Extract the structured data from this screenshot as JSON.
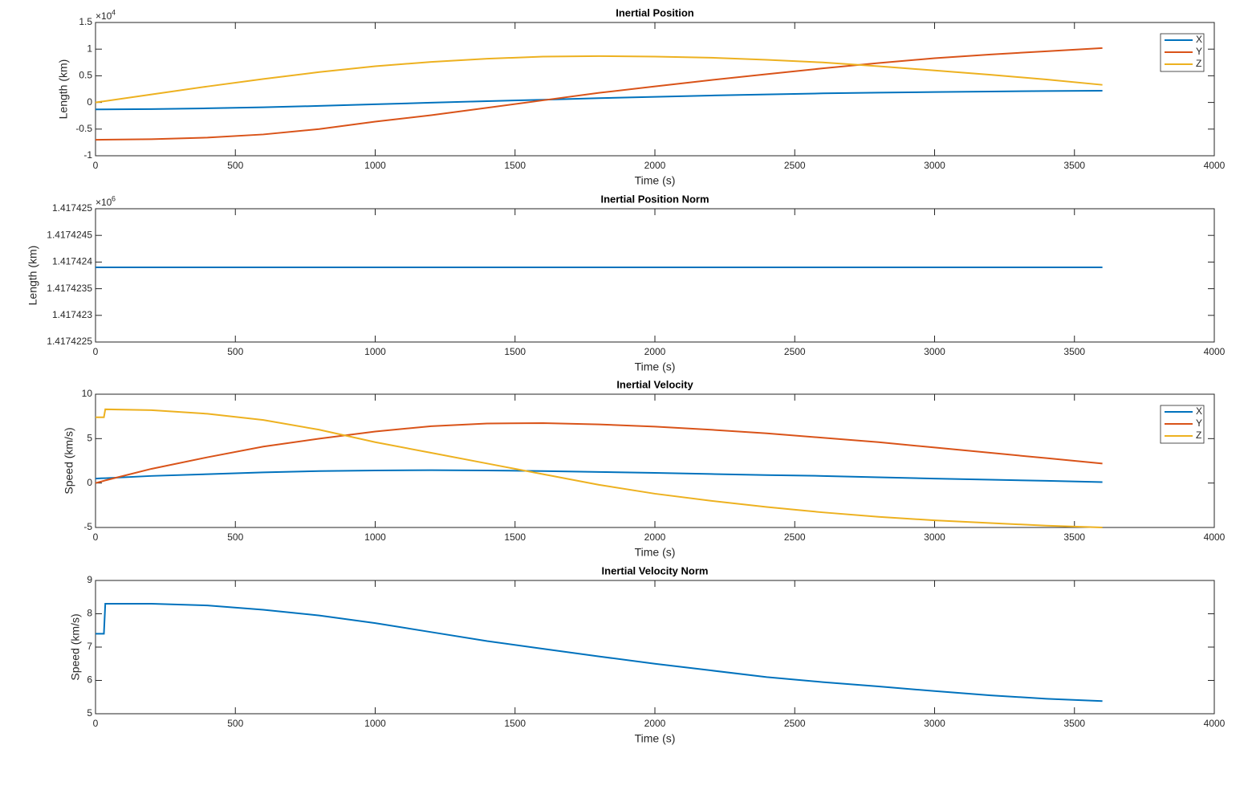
{
  "chart_data": [
    {
      "type": "line",
      "title": "Inertial Position",
      "xlabel": "Time (s)",
      "ylabel": "Length (km)",
      "y_scale_label": {
        "base": "×10",
        "exponent": "4"
      },
      "x": [
        0,
        200,
        400,
        600,
        800,
        1000,
        1200,
        1400,
        1600,
        1800,
        2000,
        2200,
        2400,
        2600,
        2800,
        3000,
        3200,
        3400,
        3600
      ],
      "series": [
        {
          "name": "X",
          "color": "#0072BD",
          "values": [
            -0.13,
            -0.125,
            -0.11,
            -0.09,
            -0.065,
            -0.035,
            -0.005,
            0.025,
            0.05,
            0.08,
            0.105,
            0.13,
            0.15,
            0.17,
            0.185,
            0.195,
            0.205,
            0.215,
            0.22
          ]
        },
        {
          "name": "Y",
          "color": "#D95319",
          "values": [
            -0.7,
            -0.69,
            -0.66,
            -0.6,
            -0.5,
            -0.36,
            -0.24,
            -0.1,
            0.04,
            0.18,
            0.3,
            0.42,
            0.53,
            0.64,
            0.74,
            0.83,
            0.9,
            0.96,
            1.02
          ]
        },
        {
          "name": "Z",
          "color": "#EDB120",
          "values": [
            0,
            0.15,
            0.3,
            0.44,
            0.57,
            0.68,
            0.76,
            0.82,
            0.86,
            0.87,
            0.86,
            0.84,
            0.8,
            0.75,
            0.68,
            0.6,
            0.52,
            0.43,
            0.33
          ]
        }
      ],
      "xlim": [
        0,
        4000
      ],
      "xticks": [
        0,
        500,
        1000,
        1500,
        2000,
        2500,
        3000,
        3500,
        4000
      ],
      "ylim": [
        -1,
        1.5
      ],
      "yticks": [
        -1,
        -0.5,
        0,
        0.5,
        1,
        1.5
      ],
      "legend": "northeast"
    },
    {
      "type": "line",
      "title": "Inertial Position Norm",
      "xlabel": "Time (s)",
      "ylabel": "Length (km)",
      "y_scale_label": {
        "base": "×10",
        "exponent": "6"
      },
      "x": [
        0,
        3600
      ],
      "series": [
        {
          "color": "#0072BD",
          "values": [
            1.4174239,
            1.4174239
          ]
        }
      ],
      "xlim": [
        0,
        4000
      ],
      "xticks": [
        0,
        500,
        1000,
        1500,
        2000,
        2500,
        3000,
        3500,
        4000
      ],
      "ylim": [
        1.4174225,
        1.417425
      ],
      "yticks": [
        1.4174225,
        1.417423,
        1.4174235,
        1.417424,
        1.4174245,
        1.417425
      ]
    },
    {
      "type": "line",
      "title": "Inertial Velocity",
      "xlabel": "Time (s)",
      "ylabel": "Speed (km/s)",
      "x": [
        0,
        30,
        35,
        200,
        400,
        600,
        800,
        1000,
        1200,
        1400,
        1600,
        1800,
        2000,
        2200,
        2400,
        2600,
        2800,
        3000,
        3200,
        3400,
        3600
      ],
      "series": [
        {
          "name": "X",
          "color": "#0072BD",
          "values": [
            0.5,
            0.55,
            0.55,
            0.8,
            1.0,
            1.2,
            1.35,
            1.42,
            1.45,
            1.42,
            1.35,
            1.25,
            1.15,
            1.02,
            0.9,
            0.8,
            0.65,
            0.5,
            0.38,
            0.25,
            0.1
          ]
        },
        {
          "name": "Y",
          "color": "#D95319",
          "values": [
            0,
            0.25,
            0.3,
            1.6,
            2.9,
            4.1,
            5.0,
            5.8,
            6.4,
            6.7,
            6.75,
            6.6,
            6.35,
            6.0,
            5.6,
            5.1,
            4.6,
            4.0,
            3.4,
            2.8,
            2.2
          ]
        },
        {
          "name": "Z",
          "color": "#EDB120",
          "values": [
            7.4,
            7.4,
            8.3,
            8.2,
            7.8,
            7.1,
            6.0,
            4.6,
            3.4,
            2.2,
            1.0,
            -0.2,
            -1.2,
            -2.0,
            -2.7,
            -3.3,
            -3.8,
            -4.2,
            -4.5,
            -4.8,
            -5.0
          ]
        }
      ],
      "xlim": [
        0,
        4000
      ],
      "xticks": [
        0,
        500,
        1000,
        1500,
        2000,
        2500,
        3000,
        3500,
        4000
      ],
      "ylim": [
        -5,
        10
      ],
      "yticks": [
        -5,
        0,
        5,
        10
      ],
      "legend": "northeast"
    },
    {
      "type": "line",
      "title": "Inertial Velocity Norm",
      "xlabel": "Time (s)",
      "ylabel": "Speed (km/s)",
      "x": [
        0,
        30,
        35,
        200,
        400,
        600,
        800,
        1000,
        1200,
        1400,
        1600,
        1800,
        2000,
        2200,
        2400,
        2600,
        2800,
        3000,
        3200,
        3400,
        3600
      ],
      "series": [
        {
          "color": "#0072BD",
          "values": [
            7.4,
            7.4,
            8.3,
            8.3,
            8.25,
            8.12,
            7.95,
            7.72,
            7.45,
            7.18,
            6.95,
            6.72,
            6.5,
            6.3,
            6.1,
            5.95,
            5.82,
            5.68,
            5.55,
            5.45,
            5.38
          ]
        }
      ],
      "xlim": [
        0,
        4000
      ],
      "xticks": [
        0,
        500,
        1000,
        1500,
        2000,
        2500,
        3000,
        3500,
        4000
      ],
      "ylim": [
        5,
        9
      ],
      "yticks": [
        5,
        6,
        7,
        8,
        9
      ]
    }
  ]
}
